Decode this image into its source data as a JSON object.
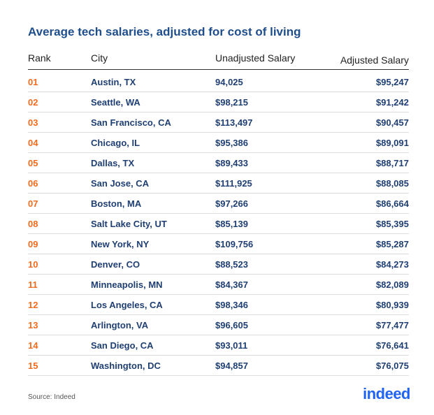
{
  "title": "Average tech salaries, adjusted for cost of living",
  "source": "Source: Indeed",
  "logo_text": "indeed",
  "colors": {
    "title": "#1f4e8c",
    "rank": "#f26b1d",
    "body_text": "#1f3f73",
    "logo": "#2164f3"
  },
  "chart_data": {
    "type": "table",
    "columns": [
      "Rank",
      "City",
      "Unadjusted Salary",
      "Adjusted Salary"
    ],
    "rows": [
      [
        "01",
        "Austin, TX",
        "94,025",
        "$95,247"
      ],
      [
        "02",
        "Seattle, WA",
        "$98,215",
        "$91,242"
      ],
      [
        "03",
        "San Francisco, CA",
        "$113,497",
        "$90,457"
      ],
      [
        "04",
        "Chicago, IL",
        "$95,386",
        "$89,091"
      ],
      [
        "05",
        "Dallas, TX",
        "$89,433",
        "$88,717"
      ],
      [
        "06",
        "San Jose, CA",
        "$111,925",
        "$88,085"
      ],
      [
        "07",
        "Boston, MA",
        "$97,266",
        "$86,664"
      ],
      [
        "08",
        "Salt Lake City, UT",
        "$85,139",
        "$85,395"
      ],
      [
        "09",
        "New York, NY",
        "$109,756",
        "$85,287"
      ],
      [
        "10",
        "Denver, CO",
        "$88,523",
        "$84,273"
      ],
      [
        "11",
        "Minneapolis, MN",
        "$84,367",
        "$82,089"
      ],
      [
        "12",
        "Los Angeles, CA",
        "$98,346",
        "$80,939"
      ],
      [
        "13",
        "Arlington, VA",
        "$96,605",
        "$77,477"
      ],
      [
        "14",
        "San Diego, CA",
        "$93,011",
        "$76,641"
      ],
      [
        "15",
        "Washington, DC",
        "$94,857",
        "$76,075"
      ]
    ]
  }
}
